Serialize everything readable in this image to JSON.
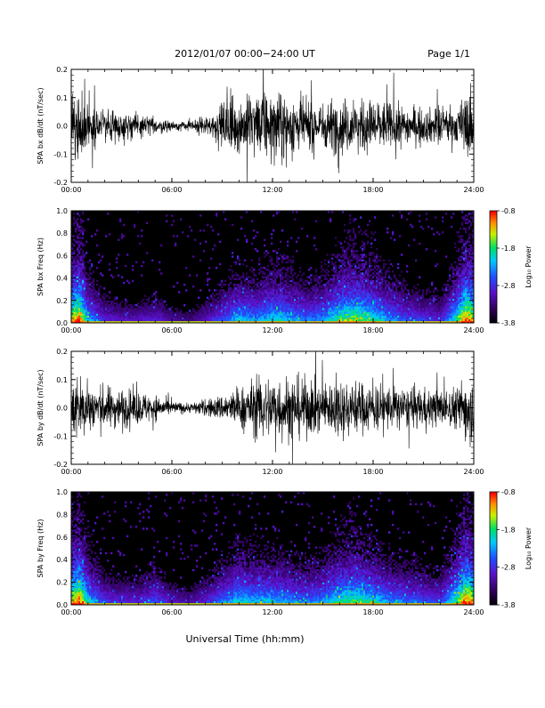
{
  "header": {
    "title": "2012/01/07  00:00−24:00 UT",
    "page": "Page 1/1"
  },
  "footer": {
    "xlabel": "Universal Time (hh:mm)"
  },
  "colorbar": {
    "label": "Log₁₀ Power",
    "ticks": [
      "-0.8",
      "-1.8",
      "-2.8",
      "-3.8"
    ],
    "range": [
      -3.8,
      -0.8
    ]
  },
  "chart_data": [
    {
      "type": "line",
      "ylabel": "SPA bx dB/dt (nT/sec)",
      "xlim": [
        0,
        24
      ],
      "ylim": [
        -0.2,
        0.2
      ],
      "x_ticks": [
        "00:00",
        "06:00",
        "12:00",
        "18:00",
        "24:00"
      ],
      "y_ticks": [
        "-0.2",
        "-0.1",
        "0.0",
        "0.1",
        "0.2"
      ],
      "envelope_hours": [
        0,
        0.5,
        1,
        2,
        3,
        4,
        5,
        6,
        7,
        8,
        9,
        9.5,
        10,
        11,
        12,
        13,
        14,
        15,
        16,
        17,
        18,
        19,
        20,
        21,
        22,
        23,
        23.5,
        24
      ],
      "envelope_amplitude": [
        0.2,
        0.2,
        0.14,
        0.1,
        0.09,
        0.07,
        0.05,
        0.03,
        0.03,
        0.06,
        0.12,
        0.2,
        0.16,
        0.2,
        0.2,
        0.2,
        0.15,
        0.14,
        0.18,
        0.14,
        0.17,
        0.14,
        0.12,
        0.1,
        0.12,
        0.1,
        0.2,
        0.2
      ]
    },
    {
      "type": "heatmap",
      "ylabel": "SPA bx Freq (Hz)",
      "xlim": [
        0,
        24
      ],
      "ylim": [
        0,
        1.0
      ],
      "x_ticks": [
        "00:00",
        "06:00",
        "12:00",
        "18:00",
        "24:00"
      ],
      "y_ticks": [
        "0.0",
        "0.2",
        "0.4",
        "0.6",
        "0.8",
        "1.0"
      ],
      "activity_hours": [
        0,
        0.5,
        1,
        2,
        3,
        4,
        5,
        6,
        7,
        8,
        9,
        10,
        11,
        12,
        13,
        14,
        15,
        16,
        17,
        18,
        19,
        20,
        21,
        22,
        23,
        23.5,
        24
      ],
      "activity_level": [
        0.9,
        1.0,
        0.6,
        0.35,
        0.3,
        0.3,
        0.35,
        0.25,
        0.2,
        0.3,
        0.45,
        0.6,
        0.55,
        0.65,
        0.6,
        0.5,
        0.55,
        0.75,
        0.8,
        0.7,
        0.55,
        0.45,
        0.4,
        0.35,
        0.7,
        1.0,
        0.9
      ]
    },
    {
      "type": "line",
      "ylabel": "SPA by dB/dt (nT/sec)",
      "xlim": [
        0,
        24
      ],
      "ylim": [
        -0.2,
        0.2
      ],
      "x_ticks": [
        "00:00",
        "06:00",
        "12:00",
        "18:00",
        "24:00"
      ],
      "y_ticks": [
        "-0.2",
        "-0.1",
        "0.0",
        "0.1",
        "0.2"
      ],
      "envelope_hours": [
        0,
        0.5,
        1,
        2,
        3,
        4,
        5,
        6,
        7,
        8,
        9,
        10,
        11,
        12,
        13,
        14,
        15,
        16,
        17,
        18,
        19,
        20,
        21,
        22,
        23,
        23.5,
        24
      ],
      "envelope_amplitude": [
        0.2,
        0.2,
        0.15,
        0.13,
        0.12,
        0.1,
        0.08,
        0.04,
        0.03,
        0.05,
        0.08,
        0.12,
        0.18,
        0.2,
        0.2,
        0.18,
        0.15,
        0.18,
        0.16,
        0.15,
        0.14,
        0.12,
        0.12,
        0.11,
        0.13,
        0.2,
        0.2
      ]
    },
    {
      "type": "heatmap",
      "ylabel": "SPA by Freq (Hz)",
      "xlim": [
        0,
        24
      ],
      "ylim": [
        0,
        1.0
      ],
      "x_ticks": [
        "00:00",
        "06:00",
        "12:00",
        "18:00",
        "24:00"
      ],
      "y_ticks": [
        "0.0",
        "0.2",
        "0.4",
        "0.6",
        "0.8",
        "1.0"
      ],
      "activity_hours": [
        0,
        0.5,
        1,
        2,
        3,
        4,
        5,
        6,
        7,
        8,
        9,
        10,
        11,
        12,
        13,
        14,
        15,
        16,
        17,
        18,
        19,
        20,
        21,
        22,
        23,
        23.5,
        24
      ],
      "activity_level": [
        0.9,
        1.0,
        0.65,
        0.4,
        0.35,
        0.35,
        0.45,
        0.3,
        0.25,
        0.35,
        0.5,
        0.65,
        0.6,
        0.6,
        0.55,
        0.5,
        0.55,
        0.7,
        0.75,
        0.65,
        0.55,
        0.5,
        0.45,
        0.4,
        0.75,
        1.0,
        0.9
      ]
    }
  ]
}
